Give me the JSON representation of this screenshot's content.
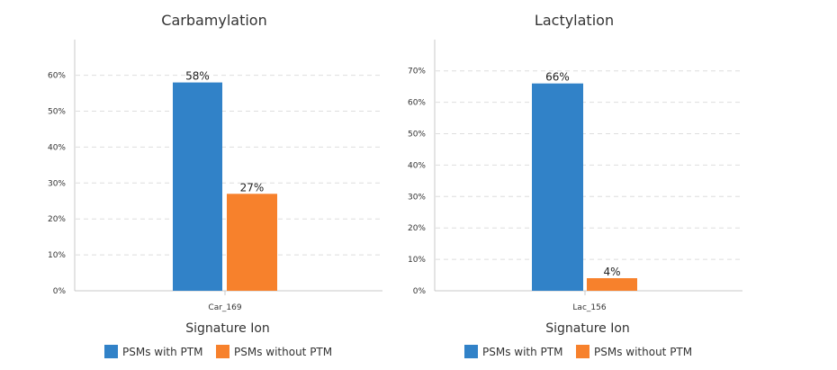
{
  "chart_data": [
    {
      "type": "bar",
      "title": "Carbamylation",
      "xlabel": "Signature Ion",
      "ylabel": "",
      "categories": [
        "Car_169"
      ],
      "series": [
        {
          "name": "PSMs with PTM",
          "values": [
            58
          ],
          "color": "#3182C8"
        },
        {
          "name": "PSMs without PTM",
          "values": [
            27
          ],
          "color": "#F7812C"
        }
      ],
      "data_labels": [
        "58%",
        "27%"
      ],
      "ylim": [
        0,
        65
      ],
      "yticks": [
        "0%",
        "10%",
        "20%",
        "30%",
        "40%",
        "50%",
        "60%"
      ],
      "grid": true,
      "legend_position": "bottom"
    },
    {
      "type": "bar",
      "title": "Lactylation",
      "xlabel": "Signature Ion",
      "ylabel": "",
      "categories": [
        "Lac_156"
      ],
      "series": [
        {
          "name": "PSMs with PTM",
          "values": [
            66
          ],
          "color": "#3182C8"
        },
        {
          "name": "PSMs without PTM",
          "values": [
            4
          ],
          "color": "#F7812C"
        }
      ],
      "data_labels": [
        "66%",
        "4%"
      ],
      "ylim": [
        0,
        70
      ],
      "yticks": [
        "0%",
        "10%",
        "20%",
        "30%",
        "40%",
        "50%",
        "60%",
        "70%"
      ],
      "grid": true,
      "legend_position": "bottom"
    }
  ]
}
